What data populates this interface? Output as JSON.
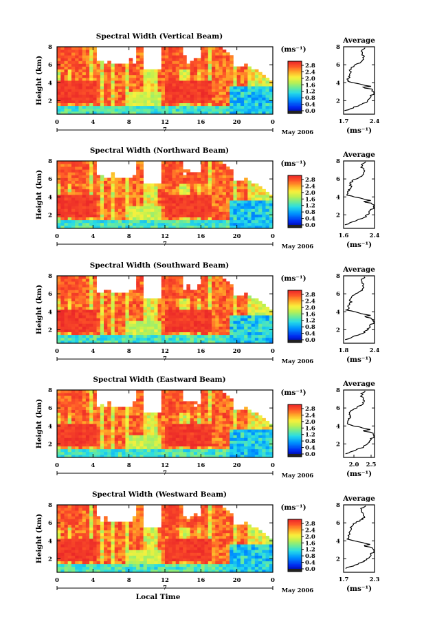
{
  "chart_data": [
    {
      "type": "heatmap",
      "title": "Spectral Width (Vertical Beam)",
      "ylabel": "Height (km)",
      "xticks": [
        "0",
        "4",
        "8",
        "12",
        "16",
        "20",
        "0"
      ],
      "yticks": [
        "2",
        "4",
        "6",
        "8"
      ],
      "xlim": [
        0,
        24
      ],
      "ylim": [
        0.5,
        8.0
      ],
      "date_marker": "7",
      "month_label": "May 2006",
      "colorbar": {
        "unit_label": "(ms⁻¹)",
        "ticks": [
          "0.0",
          "0.4",
          "0.8",
          "1.2",
          "1.6",
          "2.0",
          "2.4",
          "2.8"
        ],
        "range": [
          0.0,
          2.8
        ]
      },
      "profile": {
        "title": "Average",
        "xticks": [
          "1.7",
          "2.4"
        ],
        "xlim": [
          1.7,
          2.4
        ],
        "yticks": [
          "2",
          "4",
          "6",
          "8"
        ],
        "ylim": [
          0.5,
          8.0
        ],
        "xlabel": "(ms⁻¹)"
      }
    },
    {
      "type": "heatmap",
      "title": "Spectral Width (Northward Beam)",
      "ylabel": "Height (km)",
      "xticks": [
        "0",
        "4",
        "8",
        "12",
        "16",
        "20",
        "0"
      ],
      "yticks": [
        "2",
        "4",
        "6",
        "8"
      ],
      "xlim": [
        0,
        24
      ],
      "ylim": [
        0.5,
        8.0
      ],
      "date_marker": "7",
      "month_label": "May 2006",
      "colorbar": {
        "unit_label": "(ms⁻¹)",
        "ticks": [
          "0.0",
          "0.4",
          "0.8",
          "1.2",
          "1.6",
          "2.0",
          "2.4",
          "2.8"
        ],
        "range": [
          0.0,
          2.8
        ]
      },
      "profile": {
        "title": "Average",
        "xticks": [
          "1.6",
          "2.4"
        ],
        "xlim": [
          1.6,
          2.4
        ],
        "yticks": [
          "2",
          "4",
          "6",
          "8"
        ],
        "ylim": [
          0.5,
          8.0
        ],
        "xlabel": "(ms⁻¹)"
      }
    },
    {
      "type": "heatmap",
      "title": "Spectral Width (Southward Beam)",
      "ylabel": "Height (km)",
      "xticks": [
        "0",
        "4",
        "8",
        "12",
        "16",
        "20",
        "0"
      ],
      "yticks": [
        "2",
        "4",
        "6",
        "8"
      ],
      "xlim": [
        0,
        24
      ],
      "ylim": [
        0.5,
        8.0
      ],
      "date_marker": "7",
      "month_label": "May 2006",
      "colorbar": {
        "unit_label": "(ms⁻¹)",
        "ticks": [
          "0.0",
          "0.4",
          "0.8",
          "1.2",
          "1.6",
          "2.0",
          "2.4",
          "2.8"
        ],
        "range": [
          0.0,
          2.8
        ]
      },
      "profile": {
        "title": "Average",
        "xticks": [
          "1.8",
          "2.4"
        ],
        "xlim": [
          1.8,
          2.4
        ],
        "yticks": [
          "2",
          "4",
          "6",
          "8"
        ],
        "ylim": [
          0.5,
          8.0
        ],
        "xlabel": "(ms⁻¹)"
      }
    },
    {
      "type": "heatmap",
      "title": "Spectral Width (Eastward Beam)",
      "ylabel": "Height (km)",
      "xticks": [
        "0",
        "4",
        "8",
        "12",
        "16",
        "20",
        "0"
      ],
      "yticks": [
        "2",
        "4",
        "6",
        "8"
      ],
      "xlim": [
        0,
        24
      ],
      "ylim": [
        0.5,
        8.0
      ],
      "date_marker": "7",
      "month_label": "May 2006",
      "colorbar": {
        "unit_label": "(ms⁻¹)",
        "ticks": [
          "0.0",
          "0.4",
          "0.8",
          "1.2",
          "1.6",
          "2.0",
          "2.4",
          "2.8"
        ],
        "range": [
          0.0,
          2.8
        ]
      },
      "profile": {
        "title": "Average",
        "xticks": [
          "2.0",
          "2.5"
        ],
        "xlim": [
          1.7,
          2.6
        ],
        "yticks": [
          "2",
          "4",
          "6",
          "8"
        ],
        "ylim": [
          0.5,
          8.0
        ],
        "xlabel": "(ms⁻¹)"
      }
    },
    {
      "type": "heatmap",
      "title": "Spectral Width (Westward Beam)",
      "ylabel": "Height (km)",
      "xlabel": "Local Time",
      "xticks": [
        "0",
        "4",
        "8",
        "12",
        "16",
        "20",
        "0"
      ],
      "yticks": [
        "2",
        "4",
        "6",
        "8"
      ],
      "xlim": [
        0,
        24
      ],
      "ylim": [
        0.5,
        8.0
      ],
      "date_marker": "7",
      "month_label": "May 2006",
      "colorbar": {
        "unit_label": "(ms⁻¹)",
        "ticks": [
          "0.0",
          "0.4",
          "0.8",
          "1.2",
          "1.6",
          "2.0",
          "2.4",
          "2.8"
        ],
        "range": [
          0.0,
          2.8
        ]
      },
      "profile": {
        "title": "Average",
        "xticks": [
          "1.7",
          "2.3"
        ],
        "xlim": [
          1.7,
          2.3
        ],
        "yticks": [
          "2",
          "4",
          "6",
          "8"
        ],
        "ylim": [
          0.5,
          8.0
        ],
        "xlabel": "(ms⁻¹)"
      }
    }
  ]
}
